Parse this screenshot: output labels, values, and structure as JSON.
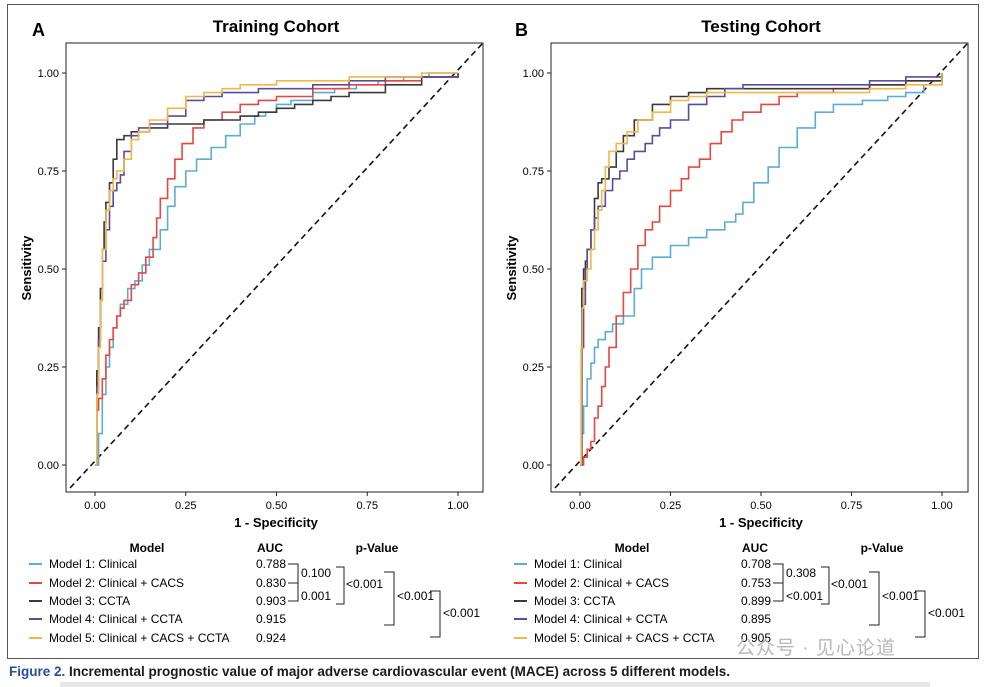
{
  "figure": {
    "caption_label": "Figure 2.",
    "caption_text": " Incremental prognostic value of major adverse cardiovascular event (MACE) across 5 different models.",
    "watermark": "公众号 · 见心论道"
  },
  "colors": {
    "model1": "#5aaed6",
    "model2": "#e8473f",
    "model3": "#3a3a3a",
    "model4": "#5b4c9e",
    "model5": "#f4b647"
  },
  "panels": [
    {
      "letter": "A",
      "title": "Training Cohort",
      "legend": {
        "head_model": "Model",
        "head_auc": "AUC",
        "head_p": "p-Value",
        "entries": [
          {
            "label": "Model 1: Clinical",
            "auc": "0.788"
          },
          {
            "label": "Model 2: Clinical + CACS",
            "auc": "0.830"
          },
          {
            "label": "Model 3: CCTA",
            "auc": "0.903"
          },
          {
            "label": "Model 4: Clinical + CCTA",
            "auc": "0.915"
          },
          {
            "label": "Model 5: Clinical + CACS + CCTA",
            "auc": "0.924"
          }
        ],
        "p_values": {
          "m1_m2": "0.100",
          "m2_m3": "0.001",
          "m1_m3": "<0.001",
          "m3_m4": "<0.001",
          "m4_m5": "<0.001"
        }
      }
    },
    {
      "letter": "B",
      "title": "Testing Cohort",
      "legend": {
        "head_model": "Model",
        "head_auc": "AUC",
        "head_p": "p-Value",
        "entries": [
          {
            "label": "Model 1: Clinical",
            "auc": "0.708"
          },
          {
            "label": "Model 2: Clinical + CACS",
            "auc": "0.753"
          },
          {
            "label": "Model 3: CCTA",
            "auc": "0.899"
          },
          {
            "label": "Model 4: Clinical + CCTA",
            "auc": "0.895"
          },
          {
            "label": "Model 5: Clinical + CACS + CCTA",
            "auc": "0.905"
          }
        ],
        "p_values": {
          "m1_m2": "0.308",
          "m2_m3": "<0.001",
          "m1_m3": "<0.001",
          "m3_m4": "<0.001",
          "m4_m5": "<0.001"
        }
      }
    }
  ],
  "chart_data": [
    {
      "type": "line",
      "title": "Training Cohort",
      "xlabel": "1 - Specificity",
      "ylabel": "Sensitivity",
      "xlim": [
        0,
        1
      ],
      "ylim": [
        0,
        1
      ],
      "xticks": [
        "0.00",
        "0.25",
        "0.50",
        "0.75",
        "1.00"
      ],
      "yticks": [
        "0.00",
        "0.25",
        "0.50",
        "0.75",
        "1.00"
      ],
      "grid": false,
      "reference_line": "diagonal",
      "series": [
        {
          "name": "Model 1: Clinical",
          "color_key": "model1",
          "x": [
            0,
            0.01,
            0.02,
            0.03,
            0.04,
            0.05,
            0.06,
            0.07,
            0.09,
            0.11,
            0.13,
            0.15,
            0.18,
            0.2,
            0.22,
            0.25,
            0.28,
            0.32,
            0.36,
            0.4,
            0.44,
            0.47,
            0.5,
            0.54,
            0.6,
            0.66,
            0.72,
            0.78,
            0.85,
            0.92,
            0.97,
            1.0
          ],
          "y": [
            0,
            0.08,
            0.18,
            0.25,
            0.3,
            0.35,
            0.38,
            0.41,
            0.45,
            0.47,
            0.51,
            0.55,
            0.6,
            0.66,
            0.71,
            0.75,
            0.78,
            0.81,
            0.84,
            0.87,
            0.89,
            0.9,
            0.92,
            0.93,
            0.95,
            0.96,
            0.97,
            0.98,
            0.99,
            1.0,
            1.0,
            1.0
          ]
        },
        {
          "name": "Model 2: Clinical + CACS",
          "color_key": "model2",
          "x": [
            0,
            0.005,
            0.01,
            0.02,
            0.03,
            0.04,
            0.05,
            0.06,
            0.07,
            0.08,
            0.1,
            0.12,
            0.14,
            0.16,
            0.17,
            0.18,
            0.2,
            0.22,
            0.24,
            0.27,
            0.3,
            0.35,
            0.4,
            0.45,
            0.5,
            0.6,
            0.7,
            0.8,
            0.9,
            1.0
          ],
          "y": [
            0,
            0.14,
            0.17,
            0.22,
            0.28,
            0.32,
            0.35,
            0.38,
            0.4,
            0.42,
            0.46,
            0.49,
            0.53,
            0.58,
            0.63,
            0.68,
            0.73,
            0.78,
            0.82,
            0.86,
            0.88,
            0.9,
            0.92,
            0.93,
            0.94,
            0.96,
            0.97,
            0.98,
            0.99,
            1.0
          ]
        },
        {
          "name": "Model 3: CCTA",
          "color_key": "model3",
          "x": [
            0,
            0.005,
            0.01,
            0.015,
            0.02,
            0.025,
            0.03,
            0.04,
            0.05,
            0.06,
            0.08,
            0.1,
            0.15,
            0.2,
            0.25,
            0.3,
            0.35,
            0.4,
            0.45,
            0.5,
            0.55,
            0.6,
            0.65,
            0.7,
            0.8,
            0.9,
            1.0
          ],
          "y": [
            0,
            0.24,
            0.35,
            0.45,
            0.55,
            0.62,
            0.67,
            0.72,
            0.78,
            0.83,
            0.84,
            0.85,
            0.86,
            0.87,
            0.87,
            0.88,
            0.88,
            0.89,
            0.9,
            0.91,
            0.92,
            0.93,
            0.94,
            0.95,
            0.97,
            0.99,
            1.0
          ]
        },
        {
          "name": "Model 4: Clinical + CCTA",
          "color_key": "model4",
          "x": [
            0,
            0.005,
            0.01,
            0.015,
            0.02,
            0.03,
            0.04,
            0.05,
            0.06,
            0.07,
            0.08,
            0.1,
            0.12,
            0.15,
            0.2,
            0.25,
            0.3,
            0.35,
            0.4,
            0.45,
            0.5,
            0.6,
            0.7,
            0.8,
            0.9,
            1.0
          ],
          "y": [
            0,
            0.2,
            0.32,
            0.42,
            0.52,
            0.6,
            0.66,
            0.7,
            0.72,
            0.74,
            0.8,
            0.84,
            0.86,
            0.87,
            0.89,
            0.93,
            0.94,
            0.95,
            0.95,
            0.96,
            0.96,
            0.97,
            0.98,
            0.99,
            0.99,
            1.0
          ]
        },
        {
          "name": "Model 5: Clinical + CACS + CCTA",
          "color_key": "model5",
          "x": [
            0,
            0.005,
            0.01,
            0.015,
            0.02,
            0.03,
            0.04,
            0.05,
            0.06,
            0.08,
            0.1,
            0.12,
            0.15,
            0.2,
            0.25,
            0.3,
            0.35,
            0.4,
            0.5,
            0.6,
            0.7,
            0.8,
            0.9,
            1.0
          ],
          "y": [
            0,
            0.18,
            0.3,
            0.42,
            0.55,
            0.65,
            0.7,
            0.73,
            0.75,
            0.78,
            0.83,
            0.85,
            0.88,
            0.91,
            0.94,
            0.95,
            0.96,
            0.97,
            0.98,
            0.98,
            0.99,
            0.99,
            1.0,
            1.0
          ]
        }
      ]
    },
    {
      "type": "line",
      "title": "Testing Cohort",
      "xlabel": "1 - Specificity",
      "ylabel": "Sensitivity",
      "xlim": [
        0,
        1
      ],
      "ylim": [
        0,
        1
      ],
      "xticks": [
        "0.00",
        "0.25",
        "0.50",
        "0.75",
        "1.00"
      ],
      "yticks": [
        "0.00",
        "0.25",
        "0.50",
        "0.75",
        "1.00"
      ],
      "grid": false,
      "reference_line": "diagonal",
      "series": [
        {
          "name": "Model 1: Clinical",
          "color_key": "model1",
          "x": [
            0,
            0.005,
            0.01,
            0.02,
            0.03,
            0.04,
            0.05,
            0.07,
            0.09,
            0.12,
            0.15,
            0.17,
            0.2,
            0.25,
            0.3,
            0.35,
            0.4,
            0.43,
            0.45,
            0.48,
            0.52,
            0.55,
            0.6,
            0.65,
            0.7,
            0.78,
            0.85,
            0.9,
            0.95,
            1.0
          ],
          "y": [
            0,
            0.08,
            0.15,
            0.22,
            0.26,
            0.3,
            0.32,
            0.34,
            0.36,
            0.38,
            0.45,
            0.5,
            0.53,
            0.56,
            0.58,
            0.6,
            0.62,
            0.64,
            0.67,
            0.72,
            0.76,
            0.81,
            0.86,
            0.9,
            0.92,
            0.93,
            0.94,
            0.95,
            0.97,
            1.0
          ]
        },
        {
          "name": "Model 2: Clinical + CACS",
          "color_key": "model2",
          "x": [
            0,
            0.01,
            0.02,
            0.03,
            0.04,
            0.05,
            0.06,
            0.07,
            0.08,
            0.1,
            0.12,
            0.14,
            0.16,
            0.18,
            0.2,
            0.22,
            0.25,
            0.28,
            0.3,
            0.33,
            0.36,
            0.39,
            0.42,
            0.45,
            0.5,
            0.55,
            0.6,
            0.7,
            0.8,
            0.9,
            1.0
          ],
          "y": [
            0,
            0.02,
            0.04,
            0.06,
            0.12,
            0.15,
            0.2,
            0.25,
            0.3,
            0.38,
            0.44,
            0.5,
            0.56,
            0.6,
            0.62,
            0.66,
            0.7,
            0.73,
            0.76,
            0.78,
            0.82,
            0.85,
            0.88,
            0.9,
            0.92,
            0.94,
            0.95,
            0.96,
            0.97,
            0.98,
            1.0
          ]
        },
        {
          "name": "Model 3: CCTA",
          "color_key": "model3",
          "x": [
            0,
            0.005,
            0.01,
            0.015,
            0.02,
            0.03,
            0.04,
            0.05,
            0.06,
            0.08,
            0.1,
            0.12,
            0.15,
            0.2,
            0.25,
            0.3,
            0.35,
            0.4,
            0.45,
            0.5,
            0.6,
            0.7,
            0.8,
            0.9,
            1.0
          ],
          "y": [
            0,
            0.45,
            0.5,
            0.52,
            0.55,
            0.6,
            0.68,
            0.72,
            0.73,
            0.76,
            0.8,
            0.84,
            0.88,
            0.92,
            0.94,
            0.95,
            0.96,
            0.96,
            0.96,
            0.96,
            0.96,
            0.96,
            0.97,
            0.98,
            1.0
          ]
        },
        {
          "name": "Model 4: Clinical + CCTA",
          "color_key": "model4",
          "x": [
            0,
            0.005,
            0.01,
            0.015,
            0.02,
            0.03,
            0.04,
            0.05,
            0.07,
            0.09,
            0.11,
            0.13,
            0.15,
            0.18,
            0.2,
            0.22,
            0.25,
            0.3,
            0.35,
            0.4,
            0.45,
            0.5,
            0.6,
            0.7,
            0.8,
            0.9,
            1.0
          ],
          "y": [
            0,
            0.3,
            0.41,
            0.5,
            0.55,
            0.6,
            0.63,
            0.66,
            0.7,
            0.73,
            0.75,
            0.78,
            0.8,
            0.82,
            0.84,
            0.86,
            0.88,
            0.92,
            0.94,
            0.96,
            0.97,
            0.97,
            0.97,
            0.97,
            0.98,
            0.99,
            1.0
          ]
        },
        {
          "name": "Model 5: Clinical + CACS + CCTA",
          "color_key": "model5",
          "x": [
            0,
            0.003,
            0.006,
            0.01,
            0.02,
            0.03,
            0.04,
            0.05,
            0.06,
            0.07,
            0.08,
            0.1,
            0.13,
            0.16,
            0.2,
            0.25,
            0.3,
            0.35,
            0.4,
            0.5,
            0.6,
            0.7,
            0.8,
            0.9,
            1.0
          ],
          "y": [
            0,
            0.3,
            0.4,
            0.47,
            0.5,
            0.55,
            0.6,
            0.65,
            0.7,
            0.76,
            0.8,
            0.82,
            0.85,
            0.88,
            0.9,
            0.93,
            0.94,
            0.95,
            0.95,
            0.95,
            0.95,
            0.95,
            0.96,
            0.97,
            1.0
          ]
        }
      ]
    }
  ]
}
